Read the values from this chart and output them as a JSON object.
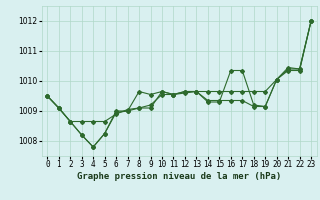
{
  "title": "Graphe pression niveau de la mer (hPa)",
  "x_labels": [
    "0",
    "1",
    "2",
    "3",
    "4",
    "5",
    "6",
    "7",
    "8",
    "9",
    "10",
    "11",
    "12",
    "13",
    "14",
    "15",
    "16",
    "17",
    "18",
    "19",
    "20",
    "21",
    "22",
    "23"
  ],
  "hours": [
    0,
    1,
    2,
    3,
    4,
    5,
    6,
    7,
    8,
    9,
    10,
    11,
    12,
    13,
    14,
    15,
    16,
    17,
    18,
    19,
    20,
    21,
    22,
    23
  ],
  "line_smooth": [
    1009.5,
    1009.1,
    1008.65,
    1008.65,
    1008.65,
    1008.65,
    1008.9,
    1009.05,
    1009.1,
    1009.2,
    1009.55,
    1009.55,
    1009.6,
    1009.65,
    1009.65,
    1009.65,
    1009.65,
    1009.65,
    1009.65,
    1009.65,
    1010.05,
    1010.4,
    1010.4,
    1012.0
  ],
  "line_jagged": [
    1009.5,
    1009.1,
    1008.65,
    1008.2,
    1007.8,
    1008.25,
    1008.95,
    1009.0,
    1009.65,
    1009.55,
    1009.65,
    1009.55,
    1009.65,
    1009.65,
    1009.3,
    1009.3,
    1010.35,
    1010.35,
    1009.2,
    1009.15,
    1010.05,
    1010.45,
    1010.4,
    1012.0
  ],
  "line_mid": [
    1009.5,
    1009.1,
    1008.65,
    1008.2,
    1007.8,
    1008.25,
    1009.0,
    1009.0,
    1009.1,
    1009.1,
    1009.65,
    1009.55,
    1009.65,
    1009.65,
    1009.35,
    1009.35,
    1009.35,
    1009.35,
    1009.15,
    1009.15,
    1010.05,
    1010.35,
    1010.35,
    1012.0
  ],
  "line_color": "#2d6a2d",
  "bg_color": "#d9f0f0",
  "grid_color": "#b0d8c8",
  "ylim": [
    1007.5,
    1012.5
  ],
  "yticks": [
    1008,
    1009,
    1010,
    1011,
    1012
  ],
  "marker": "D",
  "marker_size": 2.0,
  "linewidth": 0.8,
  "title_fontsize": 6.5,
  "tick_fontsize": 5.5
}
